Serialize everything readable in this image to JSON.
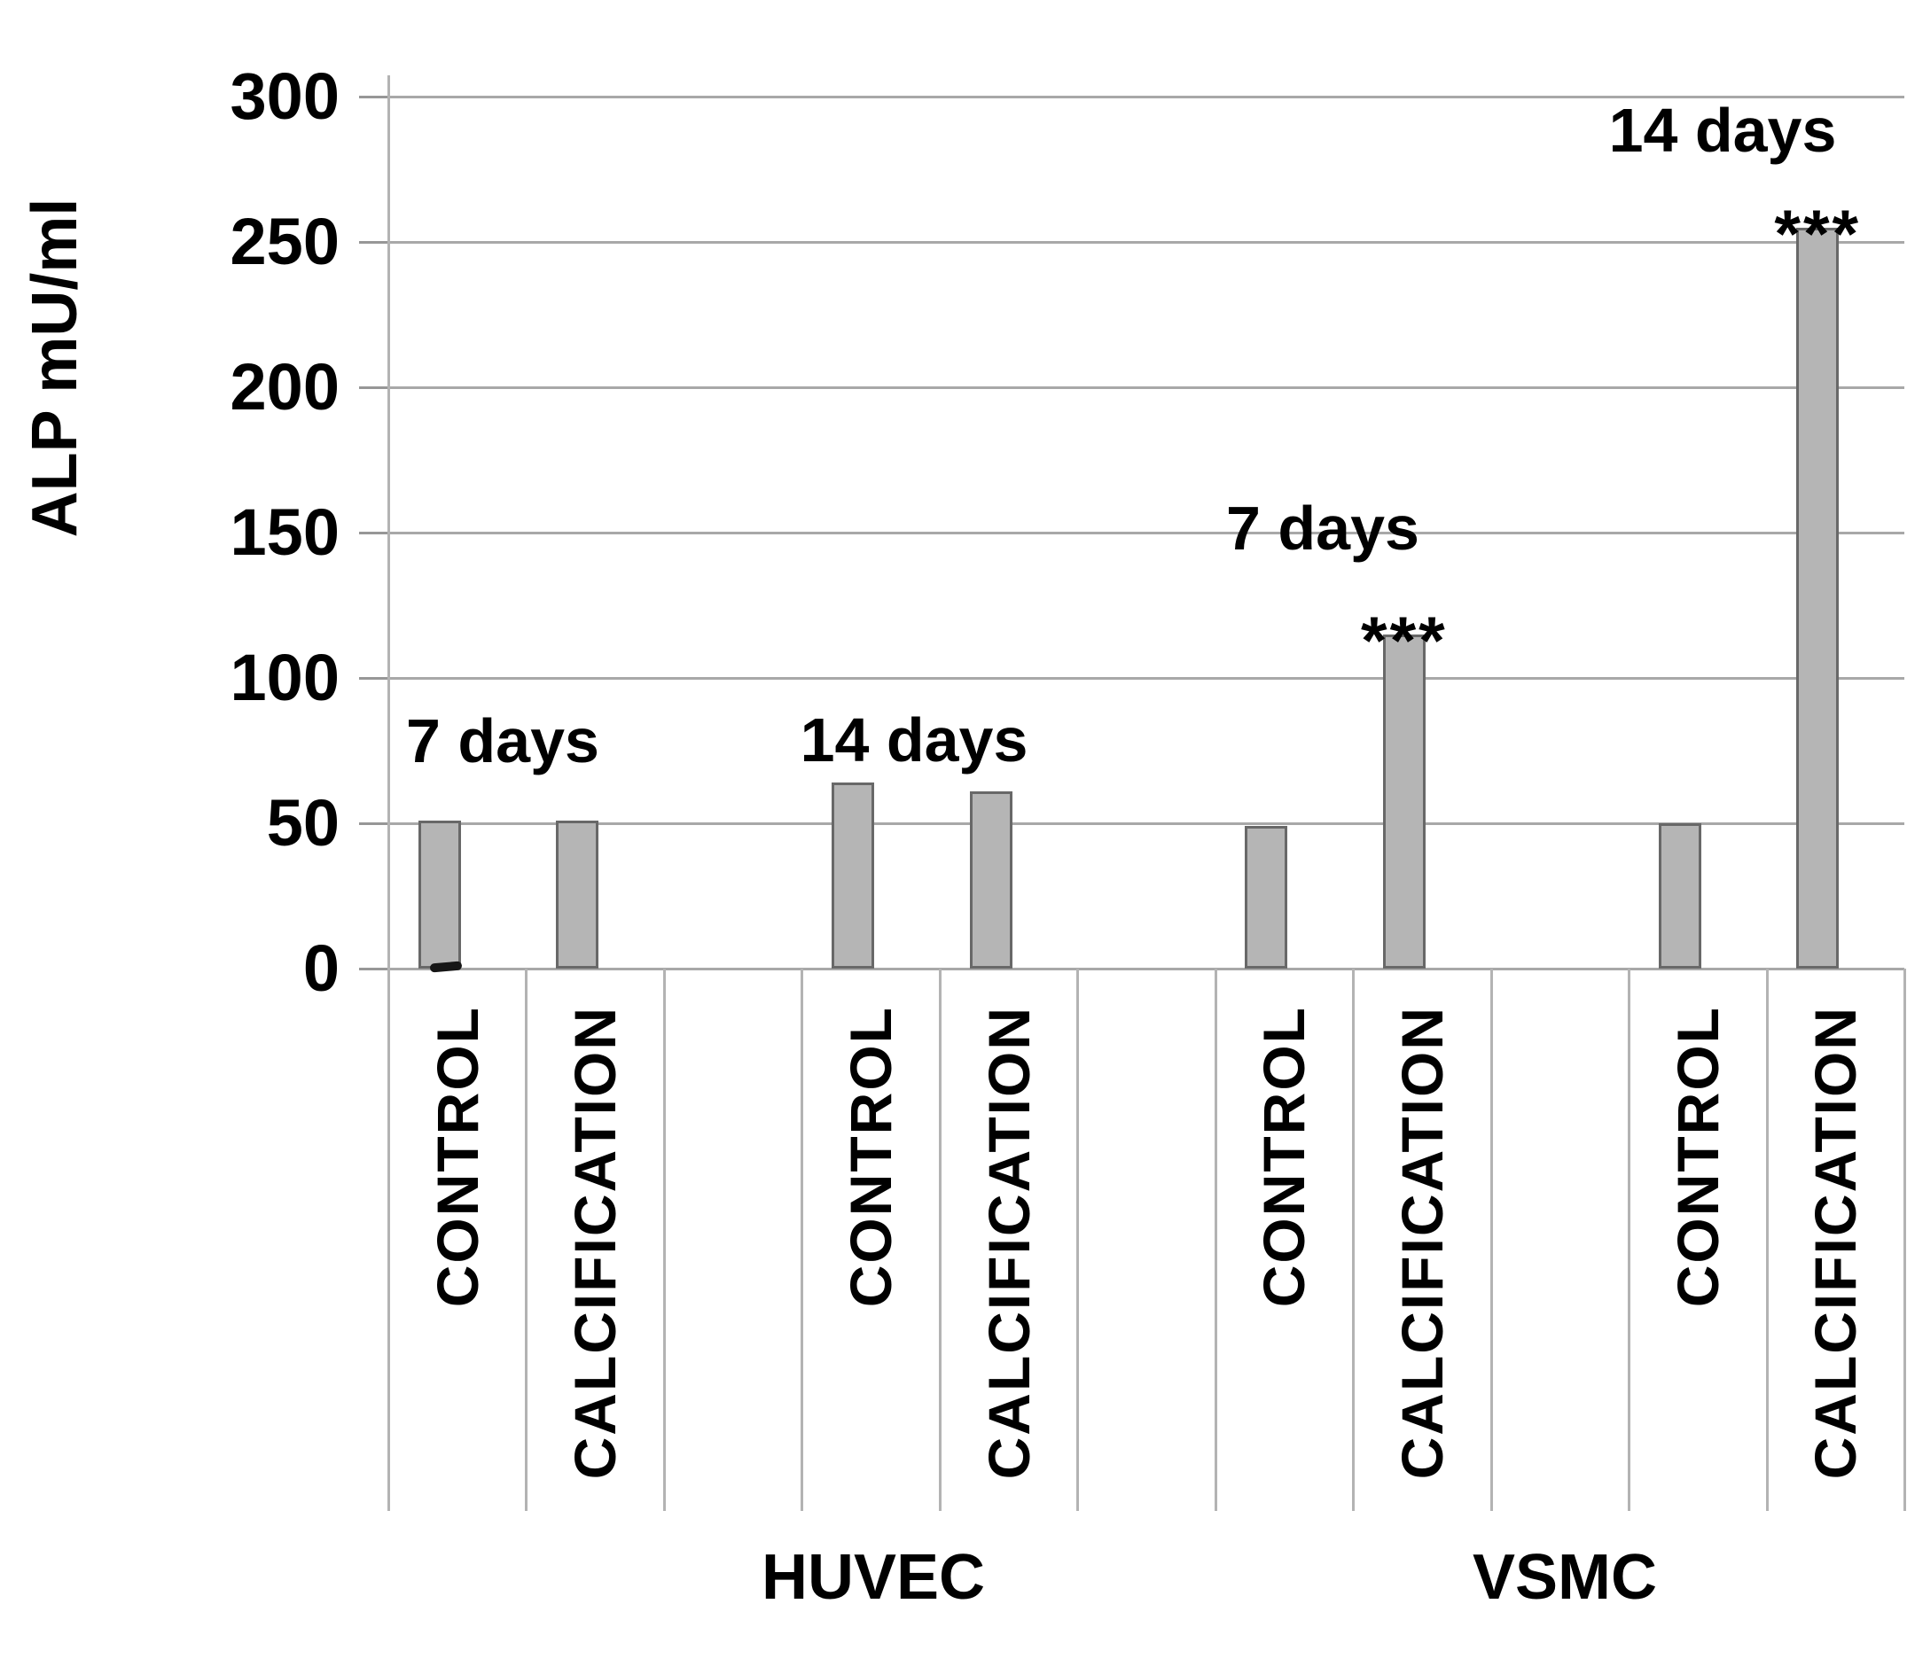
{
  "figure": {
    "background": "#ffffff",
    "text_color": "#000000"
  },
  "chart_data": {
    "type": "bar",
    "title": "",
    "ylabel": "ALP mU/ml",
    "xlabel": "",
    "ylim": [
      0,
      300
    ],
    "yticks": [
      0,
      50,
      100,
      150,
      200,
      250,
      300
    ],
    "grid": "horizontal gridlines every 50, light gray",
    "legend_position": "none",
    "bar_fill_color": "#b5b5b5",
    "bar_border_color": "#686868",
    "gridline_color": "#a8a8a8",
    "categories": [
      "HUVEC 7 days CONTROL",
      "HUVEC 7 days CALCIFICATION",
      "HUVEC 14 days CONTROL",
      "HUVEC 14 days CALCIFICATION",
      "VSMC 7 days CONTROL",
      "VSMC 7 days CALCIFICATION",
      "VSMC 14 days CONTROL",
      "VSMC 14 days CALCIFICATION"
    ],
    "values": [
      51,
      51,
      64,
      61,
      49,
      115,
      50,
      255
    ],
    "groups": [
      {
        "cell_line": "HUVEC",
        "time": "7 days",
        "time_label_center": {
          "x": 567,
          "y": 836
        },
        "bars": [
          {
            "condition": "CONTROL",
            "value": 51,
            "significance": ""
          },
          {
            "condition": "CALCIFICATION",
            "value": 51,
            "significance": ""
          }
        ]
      },
      {
        "cell_line": "HUVEC",
        "time": "14 days",
        "time_label_center": {
          "x": 1031,
          "y": 835
        },
        "bars": [
          {
            "condition": "CONTROL",
            "value": 64,
            "significance": ""
          },
          {
            "condition": "CALCIFICATION",
            "value": 61,
            "significance": ""
          }
        ]
      },
      {
        "cell_line": "VSMC",
        "time": "7 days",
        "time_label_center": {
          "x": 1492,
          "y": 596
        },
        "bars": [
          {
            "condition": "CONTROL",
            "value": 49,
            "significance": ""
          },
          {
            "condition": "CALCIFICATION",
            "value": 115,
            "significance": "***"
          }
        ]
      },
      {
        "cell_line": "VSMC",
        "time": "14 days",
        "time_label_center": {
          "x": 1943,
          "y": 147
        },
        "bars": [
          {
            "condition": "CONTROL",
            "value": 50,
            "significance": ""
          },
          {
            "condition": "CALCIFICATION",
            "value": 255,
            "significance": "***"
          }
        ]
      }
    ],
    "group_labels": [
      {
        "text": "HUVEC",
        "center_x": 985,
        "center_y": 1780
      },
      {
        "text": "VSMC",
        "center_x": 1765,
        "center_y": 1780
      }
    ]
  }
}
